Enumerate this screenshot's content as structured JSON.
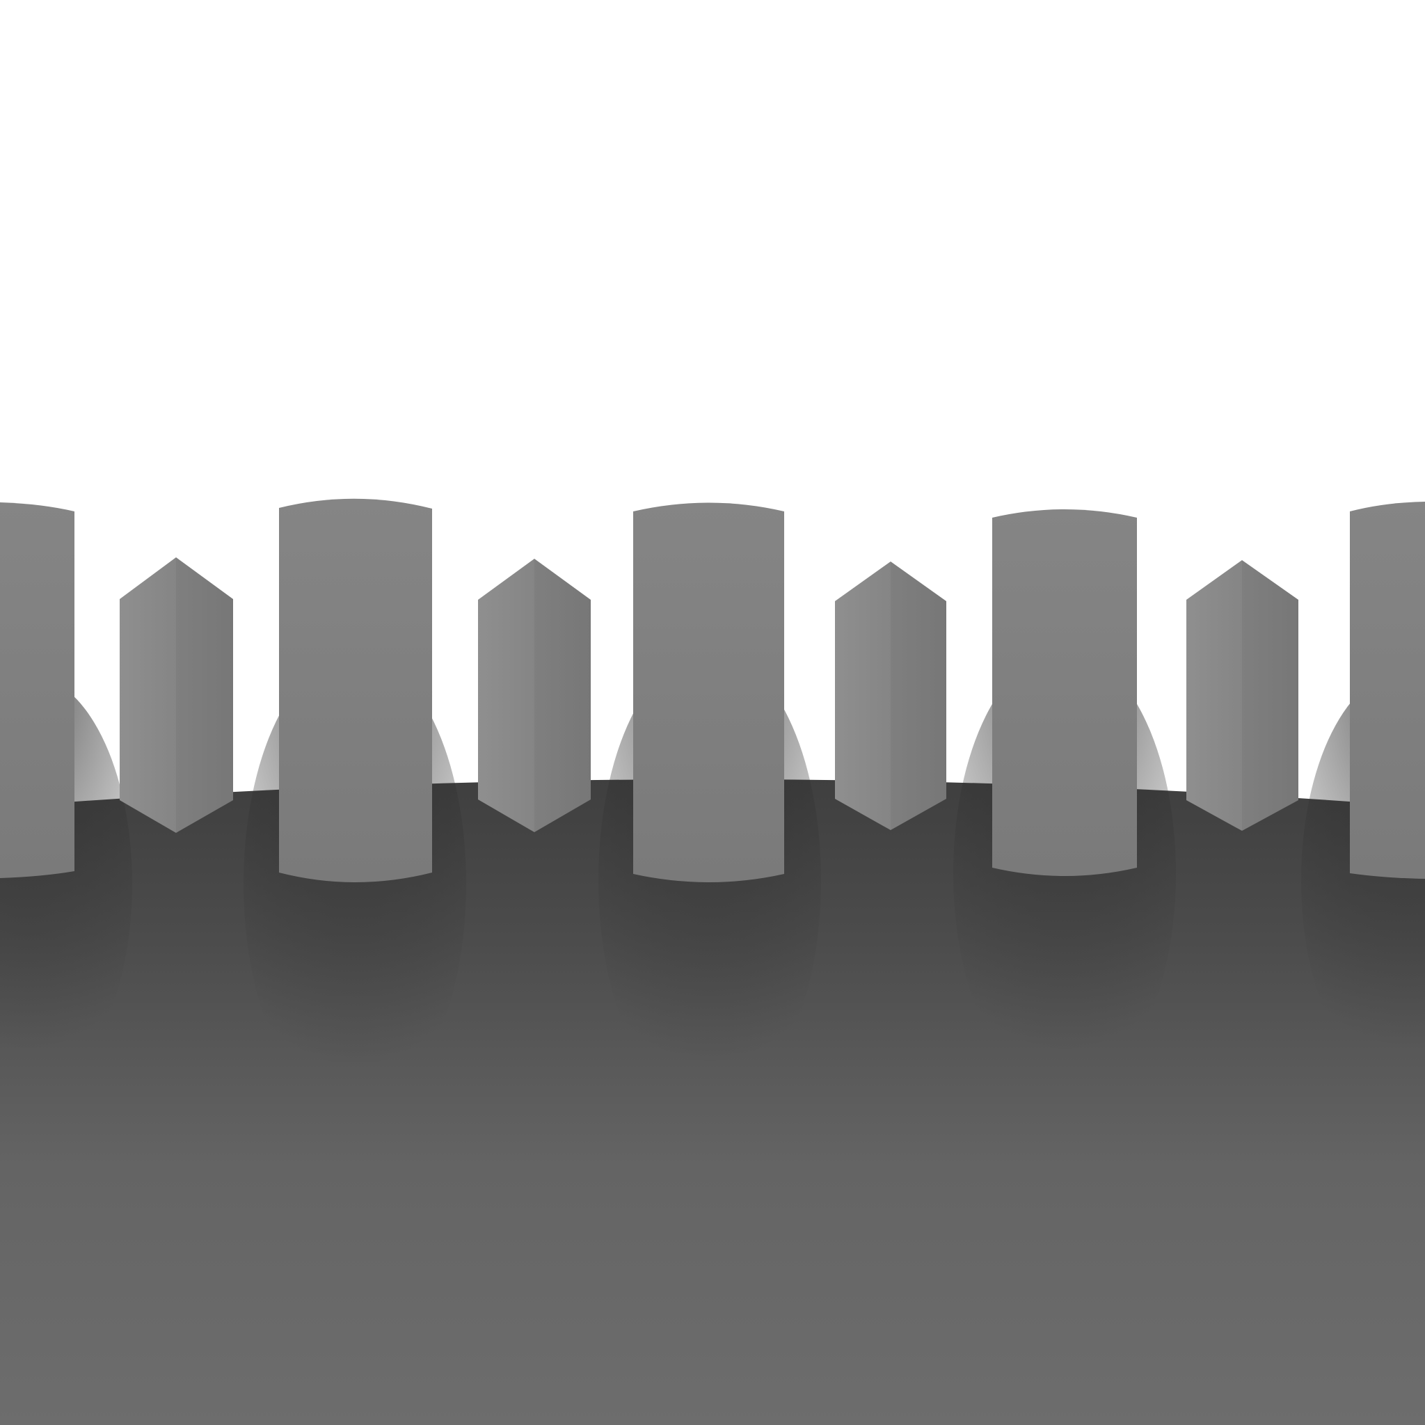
{
  "scene": {
    "description_type": "rendered-3d-panorama",
    "colors": {
      "sky": "#ffffff",
      "floor_near": "#6c6c6c",
      "floor_shadow": "#4a4a4a",
      "floor_far": "#3f3f3f",
      "pillar_body": "#7d7d7d",
      "prism_light": "#909090",
      "prism_dark": "#7a7a7a",
      "contact_shadow": "#3a3a3a"
    },
    "objects": [
      {
        "kind": "cylinder-pillar",
        "name": "pillar-1"
      },
      {
        "kind": "hex-prism",
        "name": "prism-1"
      },
      {
        "kind": "cylinder-pillar",
        "name": "pillar-2"
      },
      {
        "kind": "hex-prism",
        "name": "prism-2"
      },
      {
        "kind": "cylinder-pillar",
        "name": "pillar-3"
      },
      {
        "kind": "hex-prism",
        "name": "prism-3"
      },
      {
        "kind": "cylinder-pillar",
        "name": "pillar-4"
      },
      {
        "kind": "hex-prism",
        "name": "prism-4"
      },
      {
        "kind": "cylinder-pillar",
        "name": "pillar-5"
      }
    ]
  }
}
